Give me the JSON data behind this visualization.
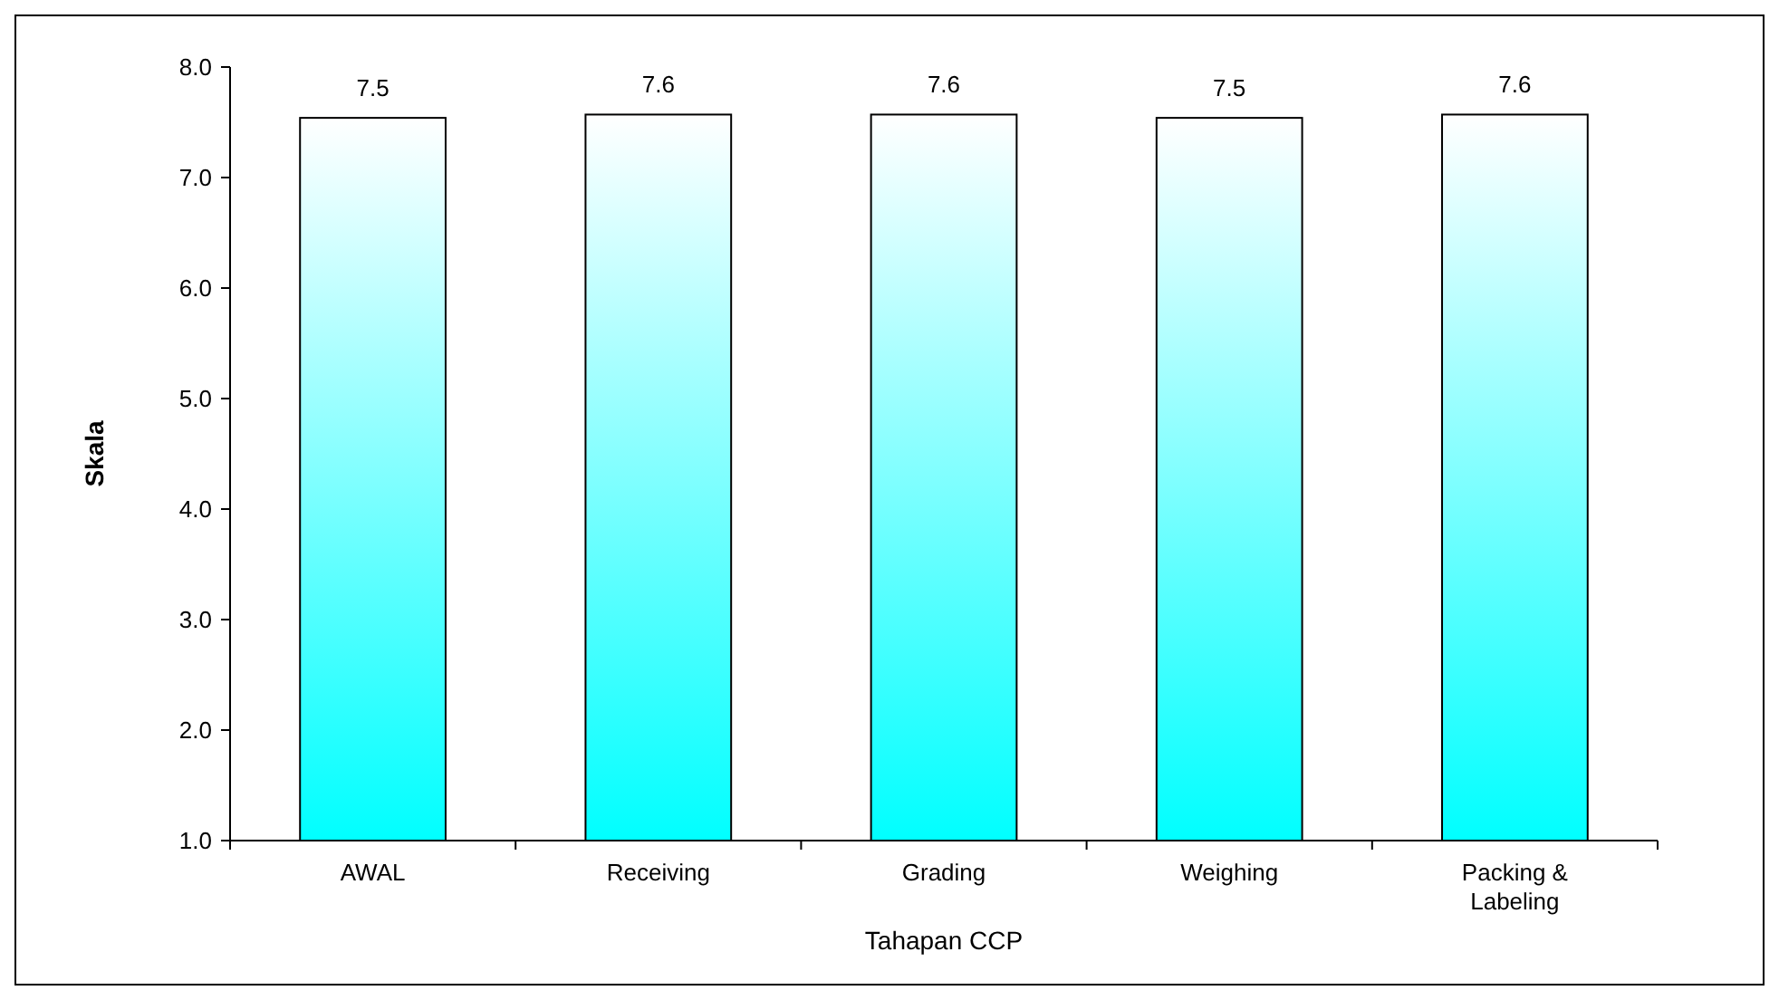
{
  "chart_data": {
    "type": "bar",
    "xlabel": "Tahapan CCP",
    "ylabel": "Skala",
    "categories": [
      "AWAL",
      "Receiving",
      "Grading",
      "Weighing",
      "Packing & Labeling"
    ],
    "values": [
      7.54,
      7.57,
      7.57,
      7.54,
      7.57
    ],
    "value_labels": [
      "7.5",
      "7.6",
      "7.6",
      "7.5",
      "7.6"
    ],
    "color": "#00ffff",
    "ylim": [
      1,
      8
    ],
    "yticks": [
      {
        "value": 1,
        "label": "1.0"
      },
      {
        "value": 2,
        "label": "2.0"
      },
      {
        "value": 3,
        "label": "3.0"
      },
      {
        "value": 4,
        "label": "4.0"
      },
      {
        "value": 5,
        "label": "5.0"
      },
      {
        "value": 6,
        "label": "6.0"
      },
      {
        "value": 7,
        "label": "7.0"
      },
      {
        "value": 8,
        "label": "8.0"
      }
    ],
    "grid": false
  }
}
